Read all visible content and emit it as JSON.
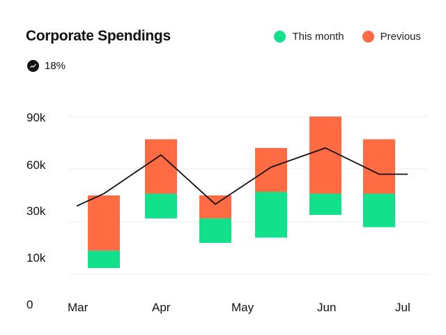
{
  "chart_data": {
    "type": "bar",
    "title": "Corporate Spendings",
    "badge": {
      "icon": "trend-up-icon",
      "value": "18%"
    },
    "legend": [
      {
        "label": "This month",
        "color": "#12e08b"
      },
      {
        "label": "Previous",
        "color": "#ff6b42"
      }
    ],
    "legend_position": "top-right",
    "x_tick_labels": [
      "Mar",
      "Apr",
      "May",
      "Jun",
      "Jul"
    ],
    "y_ticks": [
      {
        "label": "90k",
        "value": 90000
      },
      {
        "label": "60k",
        "value": 60000
      },
      {
        "label": "30k",
        "value": 30000
      },
      {
        "label": "10k",
        "value": 10000
      },
      {
        "label": "0",
        "value": 0
      }
    ],
    "grid": true,
    "bars": [
      {
        "this_month": [
          12400,
          19000
        ],
        "previous": [
          19000,
          45000
        ]
      },
      {
        "this_month": [
          32000,
          46000
        ],
        "previous": [
          46000,
          77000
        ]
      },
      {
        "this_month": [
          22000,
          32000
        ],
        "previous": [
          32000,
          45000
        ]
      },
      {
        "this_month": [
          24000,
          47000
        ],
        "previous": [
          47000,
          72000
        ]
      },
      {
        "this_month": [
          34000,
          46000
        ],
        "previous": [
          46000,
          90000
        ]
      },
      {
        "this_month": [
          28000,
          46000
        ],
        "previous": [
          46000,
          77000
        ]
      }
    ],
    "line": {
      "color": "#111111",
      "values": [
        39000,
        46000,
        68000,
        40000,
        61000,
        72000,
        57000,
        57000
      ]
    }
  }
}
